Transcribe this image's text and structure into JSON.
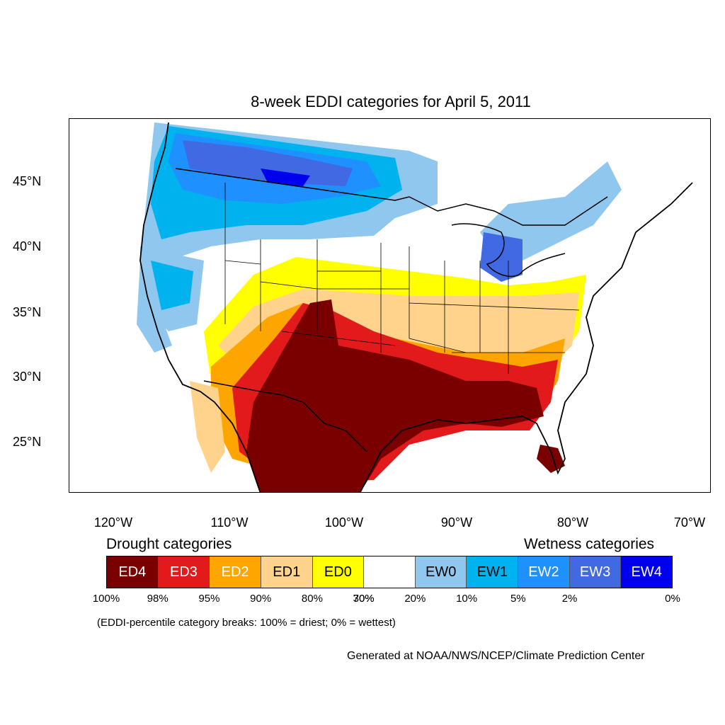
{
  "title": "8-week EDDI categories for April 5, 2011",
  "lat_labels": [
    "45°N",
    "40°N",
    "35°N",
    "30°N",
    "25°N"
  ],
  "lon_labels": [
    "120°W",
    "110°W",
    "100°W",
    "90°W",
    "80°W",
    "70°W"
  ],
  "drought_heading": "Drought categories",
  "wetness_heading": "Wetness categories",
  "legend": [
    {
      "label": "ED4",
      "color": "#7a0000",
      "text_color": "#ffffff"
    },
    {
      "label": "ED3",
      "color": "#e31a1c",
      "text_color": "#ffffff"
    },
    {
      "label": "ED2",
      "color": "#ffa500",
      "text_color": "#ffffff"
    },
    {
      "label": "ED1",
      "color": "#ffd38c",
      "text_color": "#000000"
    },
    {
      "label": "ED0",
      "color": "#ffff00",
      "text_color": "#000000"
    },
    {
      "label": "",
      "color": "#ffffff",
      "text_color": "#000000"
    },
    {
      "label": "EW0",
      "color": "#8fc7ee",
      "text_color": "#000000"
    },
    {
      "label": "EW1",
      "color": "#00b2ee",
      "text_color": "#000000"
    },
    {
      "label": "EW2",
      "color": "#1e90ff",
      "text_color": "#ffffff"
    },
    {
      "label": "EW3",
      "color": "#4169e1",
      "text_color": "#ffffff"
    },
    {
      "label": "EW4",
      "color": "#0000ee",
      "text_color": "#ffffff"
    }
  ],
  "breaks": [
    "100%",
    "98%",
    "95%",
    "90%",
    "80%",
    "70%",
    "30%",
    "20%",
    "10%",
    "5%",
    "2%",
    "0%"
  ],
  "breaks_note": "(EDDI-percentile category breaks: 100% = driest; 0% = wettest)",
  "credit": "Generated at NOAA/NWS/NCEP/Climate Prediction Center"
}
